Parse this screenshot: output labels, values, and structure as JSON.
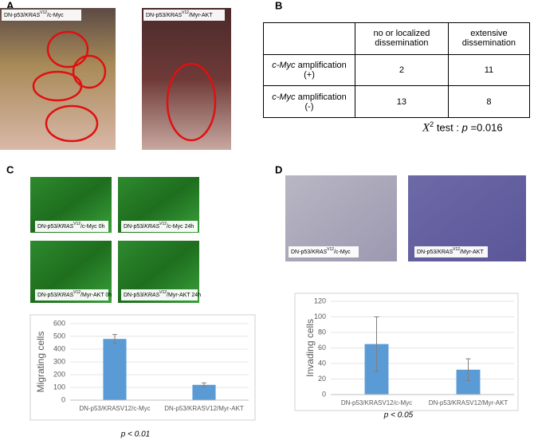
{
  "panels": {
    "A": {
      "label": "A",
      "captions": [
        {
          "pre": "DN-p53/",
          "gene": "KRAS",
          "sup": "V12",
          "post": "/c-Myc"
        },
        {
          "pre": "DN-p53/",
          "gene": "KRAS",
          "sup": "V12",
          "post": "/Myr-AKT"
        }
      ]
    },
    "B": {
      "label": "B",
      "table": {
        "header": [
          "no or localized dissemination",
          "extensive dissemination"
        ],
        "rows": [
          {
            "gene": "c-Myc",
            "text": "amplification",
            "sign": "(+)",
            "cells": [
              "2",
              "11"
            ]
          },
          {
            "gene": "c-Myc",
            "text": "amplification",
            "sign": "(-)",
            "cells": [
              "13",
              "8"
            ]
          }
        ]
      },
      "stat": {
        "symbol": "X",
        "sup": "2",
        "text": "test :",
        "p": "p",
        "value": "=0.016"
      }
    },
    "C": {
      "label": "C",
      "captions": [
        {
          "pre": "DN-p53/",
          "gene": "KRAS",
          "sup": "V12",
          "post": "/c-Myc 0h"
        },
        {
          "pre": "DN-p53/",
          "gene": "KRAS",
          "sup": "V12",
          "post": "/c-Myc 24h"
        },
        {
          "pre": "DN-p53/",
          "gene": "KRAS",
          "sup": "V12",
          "post": "/Myr-AKT 0h"
        },
        {
          "pre": "DN-p53/",
          "gene": "KRAS",
          "sup": "V12",
          "post": "/Myr-AKT 24h"
        }
      ]
    },
    "D": {
      "label": "D",
      "captions": [
        {
          "pre": "DN-p53/",
          "gene": "KRAS",
          "sup": "V12",
          "post": "/c-Myc"
        },
        {
          "pre": "DN-p53/",
          "gene": "KRAS",
          "sup": "V12",
          "post": "/Myr-AKT"
        }
      ]
    }
  },
  "chart_data": [
    {
      "type": "bar",
      "ylabel": "Migrating cells",
      "categories": [
        "DN-p53/KRASV12/c-Myc",
        "DN-p53/KRASV12/Myr-AKT"
      ],
      "values": [
        480,
        120
      ],
      "errors": [
        35,
        15
      ],
      "color": "#5b9bd5",
      "ylim": [
        0,
        600
      ],
      "yticks": [
        0,
        100,
        200,
        300,
        400,
        500,
        600
      ],
      "grid": true,
      "annotation": "p < 0.01"
    },
    {
      "type": "bar",
      "ylabel": "Invading cells",
      "categories": [
        "DN-p53/KRASV12/c-Myc",
        "DN-p53/KRASV12/Myr-AKT"
      ],
      "values": [
        65,
        32
      ],
      "errors": [
        35,
        14
      ],
      "color": "#5b9bd5",
      "ylim": [
        0,
        120
      ],
      "yticks": [
        0,
        20,
        40,
        60,
        80,
        100,
        120
      ],
      "grid": true,
      "annotation": "p < 0.05"
    }
  ]
}
